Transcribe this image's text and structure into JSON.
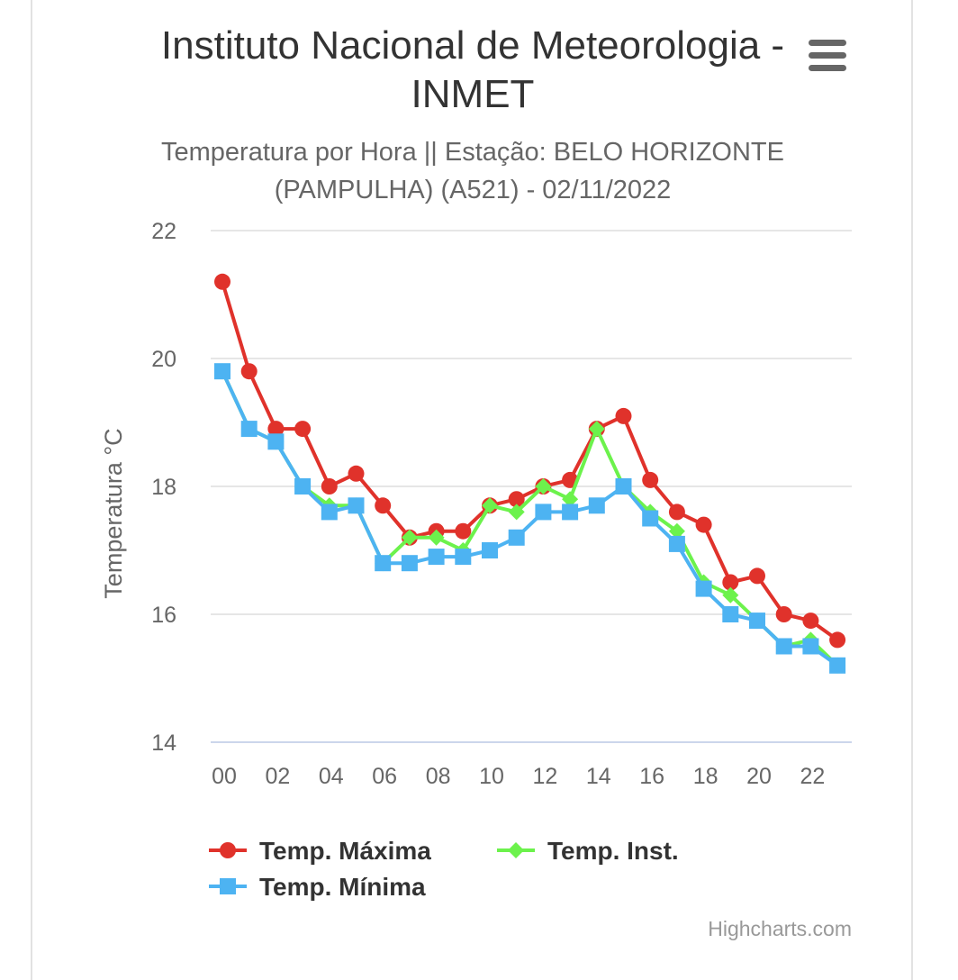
{
  "header": {
    "title": "Instituto Nacional de Meteorologia - INMET",
    "subtitle": "Temperatura por Hora || Estação: BELO HORIZONTE (PAMPULHA) (A521) - 02/11/2022",
    "menu_icon": "hamburger-menu-icon"
  },
  "credits": "Highcharts.com",
  "chart_data": {
    "type": "line",
    "title": "Instituto Nacional de Meteorologia - INMET",
    "subtitle": "Temperatura por Hora || Estação: BELO HORIZONTE (PAMPULHA) (A521) - 02/11/2022",
    "xlabel": "",
    "ylabel": "Temperatura °C",
    "categories": [
      "00",
      "01",
      "02",
      "03",
      "04",
      "05",
      "06",
      "07",
      "08",
      "09",
      "10",
      "11",
      "12",
      "13",
      "14",
      "15",
      "16",
      "17",
      "18",
      "19",
      "20",
      "21",
      "22",
      "23"
    ],
    "x_tick_labels": [
      "00",
      "02",
      "04",
      "06",
      "08",
      "10",
      "12",
      "14",
      "16",
      "18",
      "20",
      "22"
    ],
    "ylim": [
      14,
      22
    ],
    "y_ticks": [
      14,
      16,
      18,
      20,
      22
    ],
    "grid": true,
    "legend_position": "bottom",
    "series": [
      {
        "name": "Temp. Máxima",
        "color": "#e0322b",
        "marker": "circle",
        "values": [
          21.2,
          19.8,
          18.9,
          18.9,
          18.0,
          18.2,
          17.7,
          17.2,
          17.3,
          17.3,
          17.7,
          17.8,
          18.0,
          18.1,
          18.9,
          19.1,
          18.1,
          17.6,
          17.4,
          16.5,
          16.6,
          16.0,
          15.9,
          15.6
        ]
      },
      {
        "name": "Temp. Inst.",
        "color": "#6cf24c",
        "marker": "diamond",
        "values": [
          19.8,
          18.9,
          18.7,
          18.0,
          17.7,
          17.7,
          16.8,
          17.2,
          17.2,
          17.0,
          17.7,
          17.6,
          18.0,
          17.8,
          18.9,
          18.0,
          17.6,
          17.3,
          16.5,
          16.3,
          15.9,
          15.5,
          15.6,
          15.2
        ]
      },
      {
        "name": "Temp. Mínima",
        "color": "#4db3f2",
        "marker": "square",
        "values": [
          19.8,
          18.9,
          18.7,
          18.0,
          17.6,
          17.7,
          16.8,
          16.8,
          16.9,
          16.9,
          17.0,
          17.2,
          17.6,
          17.6,
          17.7,
          18.0,
          17.5,
          17.1,
          16.4,
          16.0,
          15.9,
          15.5,
          15.5,
          15.2
        ]
      }
    ]
  }
}
